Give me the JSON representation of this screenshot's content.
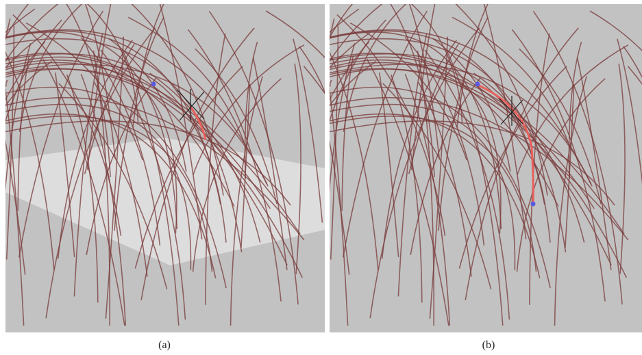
{
  "figure": {
    "panels": [
      {
        "id": "a",
        "caption": "(a)"
      },
      {
        "id": "b",
        "caption": "(b)"
      }
    ]
  },
  "colors": {
    "background": "#c2c2c2",
    "hair": "#7a3b3b",
    "highlight": "#e8605a",
    "control_point": "#5a5ae0",
    "cursor": "#222222",
    "ground_plane": "#e6e6e6"
  },
  "icons": [
    "crosshair-cursor-icon",
    "control-point-icon"
  ]
}
